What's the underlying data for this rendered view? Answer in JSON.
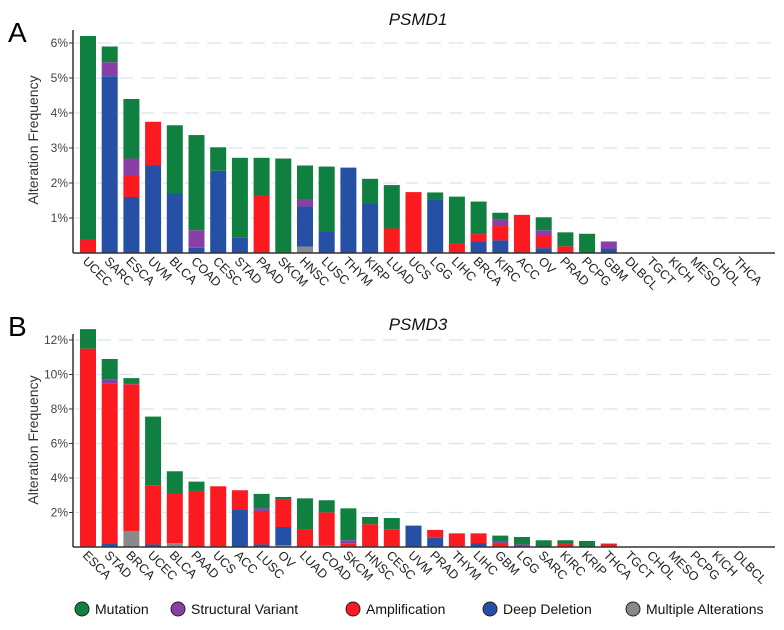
{
  "legend": [
    {
      "key": "mutation",
      "label": "Mutation",
      "color": "#0f8040"
    },
    {
      "key": "sv",
      "label": "Structural Variant",
      "color": "#8a3fa6"
    },
    {
      "key": "amp",
      "label": "Amplification",
      "color": "#fb1a1f"
    },
    {
      "key": "del",
      "label": "Deep Deletion",
      "color": "#2650a6"
    },
    {
      "key": "multi",
      "label": "Multiple Alterations",
      "color": "#8a8a8a"
    }
  ],
  "chart_data": [
    {
      "type": "bar",
      "stacked": true,
      "panel": "A",
      "title": "PSMD1",
      "ylabel": "Alteration Frequency",
      "ylim": [
        0,
        6.2
      ],
      "yticks": [
        1,
        2,
        3,
        4,
        5,
        6
      ],
      "ytick_labels": [
        "1%",
        "2%",
        "3%",
        "4%",
        "5%",
        "6%"
      ],
      "grid": true,
      "categories": [
        "UCEC",
        "SARC",
        "ESCA",
        "UVM",
        "BLCA",
        "COAD",
        "CESC",
        "STAD",
        "PAAD",
        "SKCM",
        "HNSC",
        "LUSC",
        "THYM",
        "KIRP",
        "LUAD",
        "UCS",
        "LGG",
        "LIHC",
        "BRCA",
        "KIRC",
        "ACC",
        "OV",
        "PRAD",
        "PCPG",
        "GBM",
        "DLBCL",
        "TGCT",
        "KICH",
        "MESO",
        "CHOL",
        "THCA"
      ],
      "series": [
        {
          "name": "Multiple Alterations",
          "key": "multi",
          "values": [
            0,
            0,
            0,
            0,
            0,
            0,
            0,
            0,
            0,
            0,
            0.18,
            0,
            0,
            0,
            0,
            0,
            0,
            0,
            0,
            0,
            0,
            0,
            0,
            0,
            0,
            0,
            0,
            0,
            0,
            0,
            0
          ]
        },
        {
          "name": "Deep Deletion",
          "key": "del",
          "values": [
            0,
            5.05,
            1.6,
            2.5,
            1.7,
            0.15,
            2.35,
            0.45,
            0,
            0,
            1.15,
            0.6,
            2.44,
            1.4,
            0,
            0,
            1.53,
            0,
            0.34,
            0.36,
            0,
            0.14,
            0,
            0,
            0.13,
            0,
            0,
            0,
            0,
            0,
            0
          ]
        },
        {
          "name": "Amplification",
          "key": "amp",
          "values": [
            0.4,
            0,
            0.6,
            1.25,
            0,
            0,
            0,
            0,
            1.63,
            0,
            0,
            0,
            0,
            0,
            0.7,
            1.74,
            0,
            0.26,
            0.2,
            0.41,
            1.09,
            0.36,
            0.19,
            0,
            0,
            0,
            0,
            0,
            0,
            0,
            0
          ]
        },
        {
          "name": "Structural Variant",
          "key": "sv",
          "values": [
            0,
            0.4,
            0.5,
            0,
            0,
            0.5,
            0,
            0,
            0,
            0,
            0.2,
            0,
            0,
            0,
            0,
            0,
            0,
            0,
            0,
            0.18,
            0,
            0.15,
            0,
            0,
            0.2,
            0,
            0,
            0,
            0,
            0,
            0
          ]
        },
        {
          "name": "Mutation",
          "key": "mutation",
          "values": [
            5.8,
            0.45,
            1.7,
            0,
            1.95,
            2.72,
            0.67,
            2.27,
            1.09,
            2.7,
            0.97,
            1.87,
            0,
            0.72,
            1.24,
            0,
            0.2,
            1.35,
            0.93,
            0.2,
            0,
            0.37,
            0.4,
            0.55,
            0,
            0,
            0,
            0,
            0,
            0,
            0
          ]
        }
      ]
    },
    {
      "type": "bar",
      "stacked": true,
      "panel": "B",
      "title": "PSMD3",
      "ylabel": "Alteration Frequency",
      "ylim": [
        0,
        12.7
      ],
      "yticks": [
        2,
        4,
        6,
        8,
        10,
        12
      ],
      "ytick_labels": [
        "2%",
        "4%",
        "6%",
        "8%",
        "10%",
        "12%"
      ],
      "grid": true,
      "categories": [
        "ESCA",
        "STAD",
        "BRCA",
        "UCEC",
        "BLCA",
        "PAAD",
        "UCS",
        "ACC",
        "LUSC",
        "OV",
        "LUAD",
        "COAD",
        "SKCM",
        "HNSC",
        "CESC",
        "UVM",
        "PRAD",
        "THYM",
        "LIHC",
        "GBM",
        "LGG",
        "SARC",
        "KIRC",
        "KRIP",
        "THCA",
        "TGCT",
        "CHOL",
        "MESO",
        "PCPG",
        "KICH",
        "DLBCL"
      ],
      "series": [
        {
          "name": "Multiple Alterations",
          "key": "multi",
          "values": [
            0,
            0,
            0.93,
            0,
            0.23,
            0,
            0,
            0,
            0,
            0.1,
            0,
            0.08,
            0,
            0,
            0,
            0,
            0,
            0,
            0,
            0,
            0,
            0,
            0,
            0,
            0,
            0,
            0,
            0,
            0,
            0,
            0
          ]
        },
        {
          "name": "Deep Deletion",
          "key": "del",
          "values": [
            0,
            0.2,
            0,
            0.15,
            0,
            0,
            0,
            2.17,
            0.15,
            1.06,
            0,
            0,
            0,
            0,
            0,
            1.24,
            0.54,
            0,
            0.23,
            0,
            0,
            0,
            0,
            0,
            0,
            0,
            0,
            0,
            0,
            0,
            0
          ]
        },
        {
          "name": "Amplification",
          "key": "amp",
          "values": [
            11.5,
            9.3,
            8.5,
            3.43,
            2.9,
            3.25,
            3.52,
            1.12,
            1.94,
            1.59,
            1.04,
            1.93,
            0.19,
            1.32,
            1.0,
            0,
            0.45,
            0.79,
            0.56,
            0.2,
            0,
            0,
            0.2,
            0,
            0.2,
            0,
            0,
            0,
            0,
            0,
            0
          ]
        },
        {
          "name": "Structural Variant",
          "key": "sv",
          "values": [
            0,
            0.23,
            0.05,
            0,
            0,
            0,
            0,
            0,
            0.15,
            0,
            0,
            0,
            0.2,
            0,
            0,
            0,
            0,
            0,
            0,
            0.1,
            0.15,
            0,
            0,
            0,
            0,
            0,
            0,
            0,
            0,
            0,
            0
          ]
        },
        {
          "name": "Mutation",
          "key": "mutation",
          "values": [
            1.13,
            1.17,
            0.31,
            3.98,
            1.26,
            0.54,
            0,
            0,
            0.84,
            0.15,
            1.78,
            0.7,
            1.85,
            0.42,
            0.68,
            0,
            0,
            0,
            0,
            0.36,
            0.43,
            0.39,
            0.19,
            0.35,
            0,
            0,
            0,
            0,
            0,
            0,
            0
          ]
        }
      ]
    }
  ]
}
